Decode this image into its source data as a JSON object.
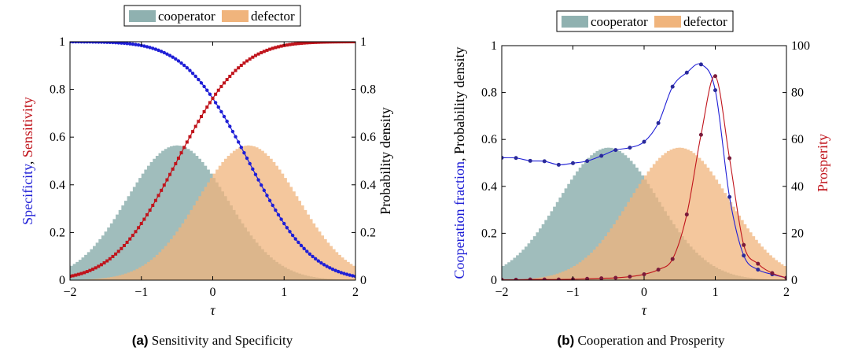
{
  "colors": {
    "cooperator": "#8fb1b0",
    "defector": "#f0b47c",
    "blue": "#1f1fd6",
    "red": "#c0141c"
  },
  "chart_data": [
    {
      "panel": "a",
      "type": "line",
      "caption_bold": "(a)",
      "caption_text": " Sensitivity and Specificity",
      "legend": [
        "cooperator",
        "defector"
      ],
      "xlabel": "τ",
      "ylabel_left": {
        "part1": "Specificity",
        "sep": ", ",
        "part2": "Sensitivity"
      },
      "ylabel_right": "Probability density",
      "xlim": [
        -2,
        2
      ],
      "ylim_left": [
        0,
        1
      ],
      "ylim_right": [
        0,
        1
      ],
      "x_ticks": [
        "−2",
        "−1",
        "0",
        "1",
        "2"
      ],
      "y_ticks_left": [
        "0",
        "0.2",
        "0.4",
        "0.6",
        "0.8",
        "1"
      ],
      "y_ticks_right": [
        "0",
        "0.2",
        "0.4",
        "0.6",
        "0.8",
        "1"
      ],
      "densities": [
        {
          "name": "cooperator",
          "mean": -0.5,
          "std": 0.7,
          "peak": 0.565
        },
        {
          "name": "defector",
          "mean": 0.5,
          "std": 0.7,
          "peak": 0.565
        }
      ],
      "curves": [
        {
          "name": "Specificity",
          "function": "1 - Phi((x - 0.5)/0.7)",
          "marker": "circle"
        },
        {
          "name": "Sensitivity",
          "function": "Phi((x + 0.5)/0.7)",
          "marker": "square"
        }
      ]
    },
    {
      "panel": "b",
      "type": "line",
      "caption_bold": "(b)",
      "caption_text": " Cooperation and Prosperity",
      "legend": [
        "cooperator",
        "defector"
      ],
      "xlabel": "τ",
      "ylabel_left": {
        "part1": "Cooperation fraction",
        "sep": ", ",
        "part2": "Probability density"
      },
      "ylabel_right": "Prosperity",
      "xlim": [
        -2,
        2
      ],
      "ylim_left": [
        0,
        1
      ],
      "ylim_right": [
        0,
        100
      ],
      "x_ticks": [
        "−2",
        "−1",
        "0",
        "1",
        "2"
      ],
      "y_ticks_left": [
        "0",
        "0.2",
        "0.4",
        "0.6",
        "0.8",
        "1"
      ],
      "y_ticks_right": [
        "0",
        "20",
        "40",
        "60",
        "80",
        "100"
      ],
      "densities": [
        {
          "name": "cooperator",
          "mean": -0.5,
          "std": 0.7,
          "peak": 0.565
        },
        {
          "name": "defector",
          "mean": 0.5,
          "std": 0.7,
          "peak": 0.565
        }
      ],
      "series": [
        {
          "name": "Cooperation fraction",
          "axis": "left",
          "x": [
            -2.0,
            -1.8,
            -1.6,
            -1.4,
            -1.2,
            -1.0,
            -0.8,
            -0.6,
            -0.4,
            -0.2,
            0.0,
            0.2,
            0.4,
            0.6,
            0.8,
            1.0,
            1.2,
            1.4,
            1.6,
            1.8,
            2.0
          ],
          "y": [
            0.522,
            0.521,
            0.509,
            0.507,
            0.492,
            0.499,
            0.508,
            0.53,
            0.555,
            0.565,
            0.59,
            0.67,
            0.825,
            0.885,
            0.92,
            0.81,
            0.355,
            0.105,
            0.045,
            0.025,
            0.01
          ]
        },
        {
          "name": "Prosperity",
          "axis": "right",
          "x": [
            -2.0,
            -1.8,
            -1.6,
            -1.4,
            -1.2,
            -1.0,
            -0.8,
            -0.6,
            -0.4,
            -0.2,
            0.0,
            0.2,
            0.4,
            0.6,
            0.8,
            1.0,
            1.2,
            1.4,
            1.6,
            1.8,
            2.0
          ],
          "y": [
            0.2,
            0.2,
            0.3,
            0.3,
            0.3,
            0.4,
            0.6,
            0.8,
            1.0,
            1.5,
            2.5,
            4.5,
            9.0,
            28.0,
            62.0,
            87.0,
            52.0,
            15.0,
            7.0,
            3.0,
            1.0
          ]
        }
      ]
    }
  ]
}
